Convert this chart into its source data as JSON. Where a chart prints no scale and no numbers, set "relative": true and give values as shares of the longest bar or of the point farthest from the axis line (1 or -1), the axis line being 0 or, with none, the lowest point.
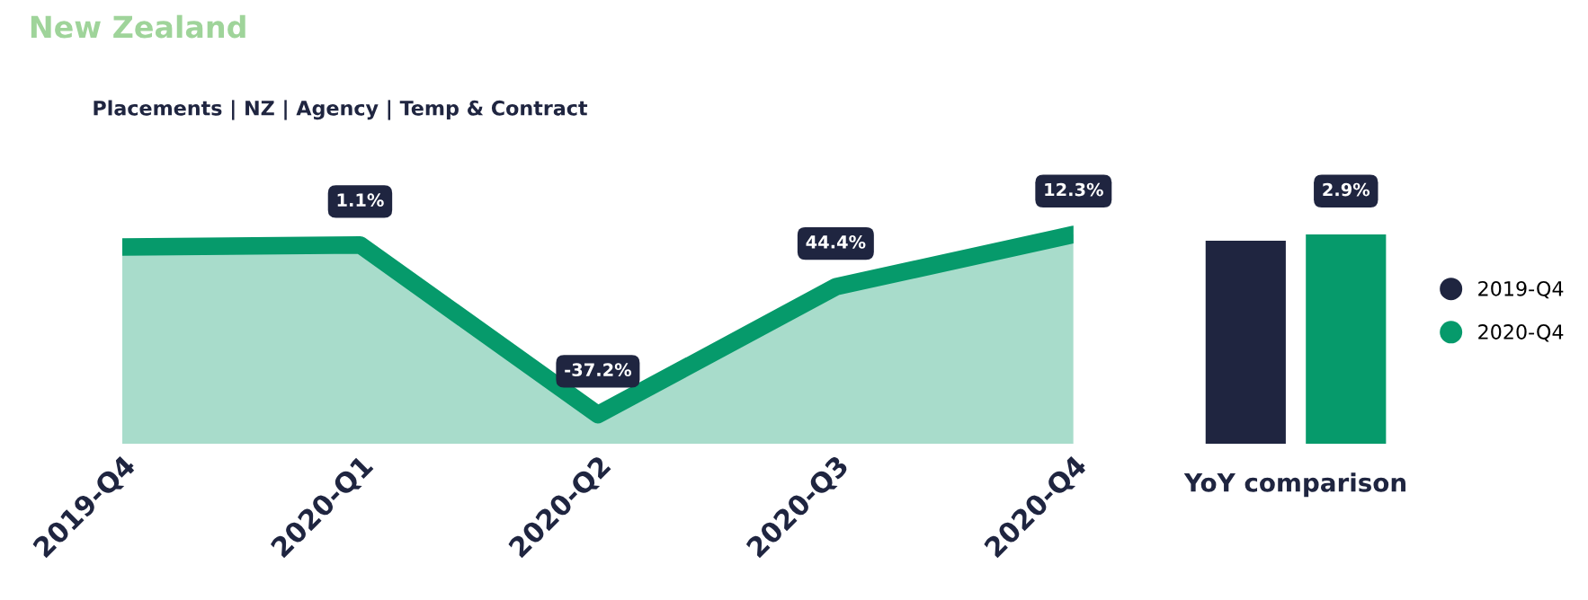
{
  "chart_data": [
    {
      "type": "area",
      "title": "New Zealand",
      "subtitle": "Placements | NZ | Agency | Temp & Contract",
      "relative": true,
      "categories": [
        "2019-Q4",
        "2020-Q1",
        "2020-Q2",
        "2020-Q3",
        "2020-Q4"
      ],
      "series": [
        {
          "color": "#069a6b",
          "values": [
            0.94,
            0.95,
            0.14,
            0.75,
            1.0
          ]
        }
      ],
      "annotations": [
        {
          "text": "1.1%",
          "x": "2020-Q1",
          "y": 0.95
        },
        {
          "text": "-37.2%",
          "x": "2020-Q2",
          "y": 0.14
        },
        {
          "text": "44.4%",
          "x": "2020-Q3",
          "y": 0.75
        },
        {
          "text": "12.3%",
          "x": "2020-Q4",
          "y": 1.0
        }
      ]
    },
    {
      "type": "bar",
      "relative": true,
      "xlabel": "YoY comparison",
      "categories": [
        null
      ],
      "legend": "right",
      "series": [
        {
          "name": "2019-Q4",
          "color": "#1f2540",
          "values": [
            0.97
          ]
        },
        {
          "name": "2020-Q4",
          "color": "#069a6b",
          "values": [
            1.0
          ]
        }
      ],
      "annotations": [
        "2.9%"
      ]
    }
  ]
}
